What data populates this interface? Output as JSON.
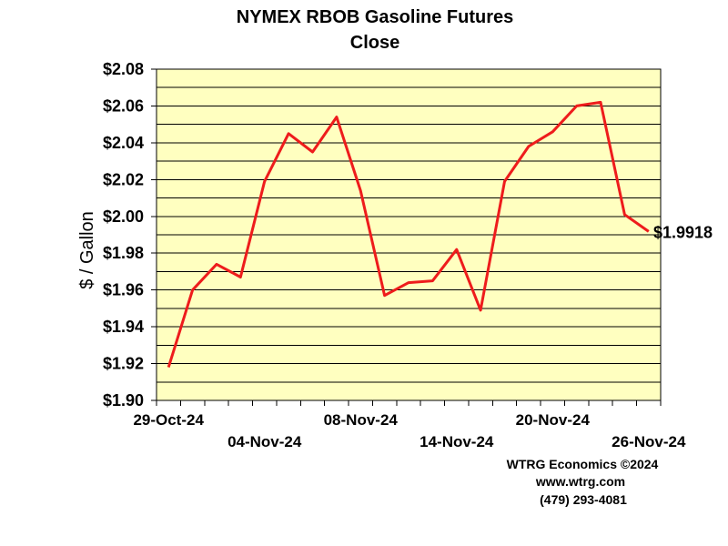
{
  "chart_data": {
    "type": "line",
    "title": "NYMEX RBOB Gasoline Futures",
    "subtitle": "Close",
    "ylabel": "$ / Gallon",
    "ylim": [
      1.9,
      2.08
    ],
    "ytick_values": [
      1.9,
      1.92,
      1.94,
      1.96,
      1.98,
      2.0,
      2.02,
      2.04,
      2.06,
      2.08
    ],
    "ytick_labels": [
      "$1.90",
      "$1.92",
      "$1.94",
      "$1.96",
      "$1.98",
      "$2.00",
      "$2.02",
      "$2.04",
      "$2.06",
      "$2.08"
    ],
    "x": [
      "29-Oct-24",
      "30-Oct-24",
      "31-Oct-24",
      "01-Nov-24",
      "04-Nov-24",
      "05-Nov-24",
      "06-Nov-24",
      "07-Nov-24",
      "08-Nov-24",
      "11-Nov-24",
      "12-Nov-24",
      "13-Nov-24",
      "14-Nov-24",
      "15-Nov-24",
      "18-Nov-24",
      "19-Nov-24",
      "20-Nov-24",
      "21-Nov-24",
      "22-Nov-24",
      "25-Nov-24",
      "26-Nov-24"
    ],
    "values": [
      1.918,
      1.96,
      1.974,
      1.967,
      2.019,
      2.045,
      2.035,
      2.054,
      2.014,
      1.957,
      1.964,
      1.965,
      1.982,
      1.949,
      2.019,
      2.038,
      2.046,
      2.06,
      2.062,
      2.001,
      1.9918
    ],
    "xtick_labels": [
      {
        "index": 0,
        "label": "29-Oct-24"
      },
      {
        "index": 4,
        "label": "04-Nov-24"
      },
      {
        "index": 8,
        "label": "08-Nov-24"
      },
      {
        "index": 12,
        "label": "14-Nov-24"
      },
      {
        "index": 16,
        "label": "20-Nov-24"
      },
      {
        "index": 20,
        "label": "26-Nov-24"
      }
    ],
    "last_value_label": "$1.9918",
    "grid": true,
    "line_color": "#ee1c1c",
    "plot_background": "#ffffc0"
  },
  "credits": {
    "line1": "WTRG Economics ©2024",
    "line2": "www.wtrg.com",
    "line3": "(479) 293-4081"
  }
}
